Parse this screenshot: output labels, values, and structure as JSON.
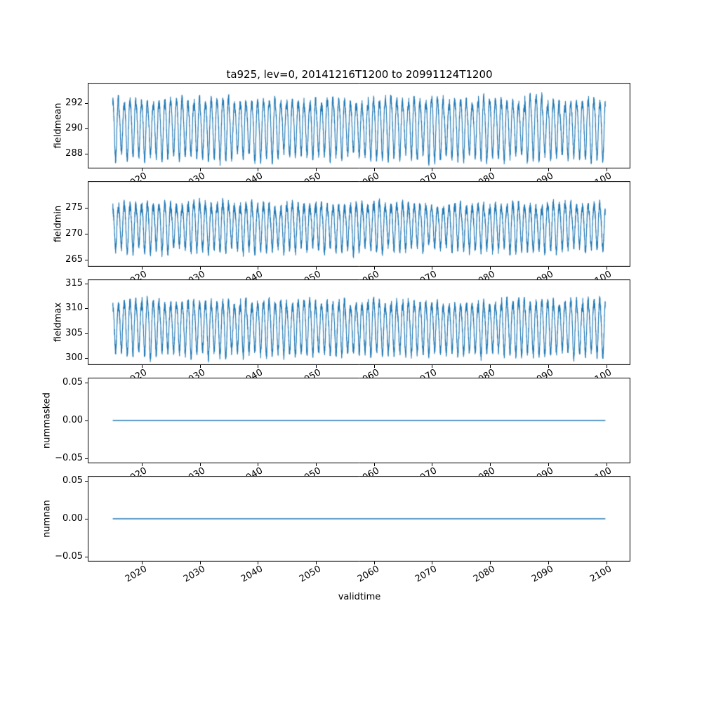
{
  "figure": {
    "background": "#ffffff",
    "frame_color": "#000000",
    "text_color": "#000000"
  },
  "chart_data": {
    "type": "line",
    "title": "ta925, lev=0, 20141216T1200 to 20991124T1200",
    "xlabel": "validtime",
    "line_color": "#1f77b4",
    "frame_color": "#000000",
    "x_start": 2014.959,
    "x_end": 2099.899,
    "xlim": [
      2010.71,
      2104.15
    ],
    "x_ticks": [
      2020,
      2030,
      2040,
      2050,
      2060,
      2070,
      2080,
      2090,
      2100
    ],
    "x_tick_labels": [
      "2020",
      "2030",
      "2040",
      "2050",
      "2060",
      "2070",
      "2080",
      "2090",
      "2100"
    ],
    "grid": false,
    "legend": "none",
    "subplots": [
      {
        "ylabel": "fieldmean",
        "ylim": [
          286.85,
          293.6
        ],
        "yticks": [
          288,
          290,
          292
        ],
        "ytick_labels": [
          "288",
          "290",
          "292"
        ],
        "seed": 11,
        "signal": {
          "kind": "seasonal",
          "base": 290.15,
          "amp": 2.15,
          "amp2": 0.25,
          "noise": 0.35,
          "jitter": 0.18,
          "phase": 0.7
        }
      },
      {
        "ylabel": "fieldmin",
        "ylim": [
          263.6,
          280.1
        ],
        "yticks": [
          265,
          270,
          275
        ],
        "ytick_labels": [
          "265",
          "270",
          "275"
        ],
        "seed": 23,
        "signal": {
          "kind": "seasonal",
          "base": 271.6,
          "amp": 4.1,
          "amp2": 0.5,
          "noise": 0.9,
          "jitter": 0.15,
          "phase": 0.7
        }
      },
      {
        "ylabel": "fieldmax",
        "ylim": [
          298.6,
          315.8
        ],
        "yticks": [
          300,
          305,
          310,
          315
        ],
        "ytick_labels": [
          "300",
          "305",
          "310",
          "315"
        ],
        "seed": 37,
        "signal": {
          "kind": "seasonal",
          "base": 306.4,
          "amp": 5.0,
          "amp2": 0.55,
          "noise": 0.95,
          "jitter": 0.14,
          "phase": 0.7
        }
      },
      {
        "ylabel": "nummasked",
        "ylim": [
          -0.056,
          0.056
        ],
        "yticks": [
          -0.05,
          0,
          0.05
        ],
        "ytick_labels": [
          "−0.05",
          "0.00",
          "0.05"
        ],
        "seed": 1,
        "signal": {
          "kind": "flat",
          "value": 0
        }
      },
      {
        "ylabel": "numnan",
        "ylim": [
          -0.056,
          0.056
        ],
        "yticks": [
          -0.05,
          0,
          0.05
        ],
        "ytick_labels": [
          "−0.05",
          "0.00",
          "0.05"
        ],
        "seed": 2,
        "signal": {
          "kind": "flat",
          "value": 0
        }
      }
    ]
  }
}
